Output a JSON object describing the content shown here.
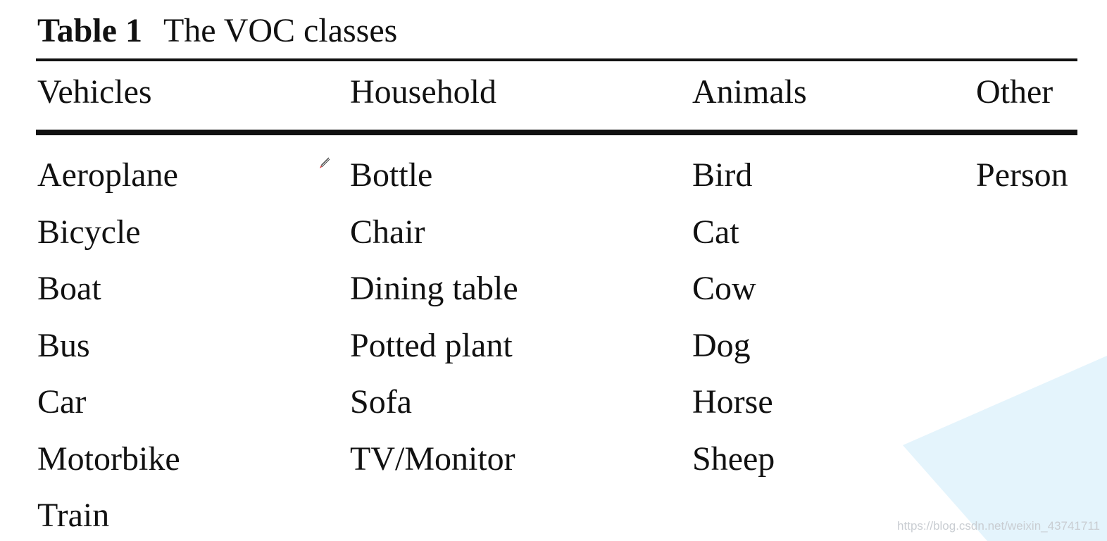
{
  "caption": {
    "label": "Table 1",
    "title": "The VOC classes"
  },
  "table": {
    "headers": [
      "Vehicles",
      "Household",
      "Animals",
      "Other"
    ],
    "rows": [
      [
        "Aeroplane",
        "Bottle",
        "Bird",
        "Person"
      ],
      [
        "Bicycle",
        "Chair",
        "Cat",
        ""
      ],
      [
        "Boat",
        "Dining table",
        "Cow",
        ""
      ],
      [
        "Bus",
        "Potted plant",
        "Dog",
        ""
      ],
      [
        "Car",
        "Sofa",
        "Horse",
        ""
      ],
      [
        "Motorbike",
        "TV/Monitor",
        "Sheep",
        ""
      ],
      [
        "Train",
        "",
        "",
        ""
      ]
    ]
  },
  "watermark": {
    "text": "https://blog.csdn.net/weixin_43741711",
    "shape_color": "#e4f4fc"
  },
  "icons": {
    "cursor": "pen-cursor-icon"
  }
}
